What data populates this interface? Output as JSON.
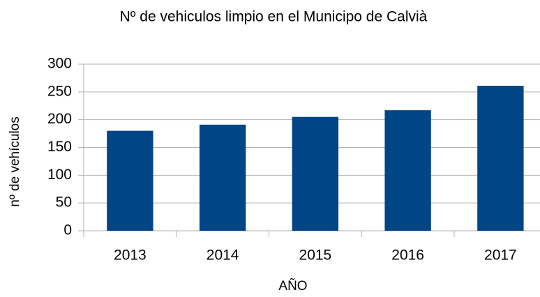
{
  "chart_data": {
    "type": "bar",
    "title": "Nº de vehiculos limpio en el Municipo de Calvià",
    "x_label": "AÑO",
    "y_label": "nº de vehículos",
    "categories": [
      "2013",
      "2014",
      "2015",
      "2016",
      "2017"
    ],
    "values": [
      180,
      191,
      205,
      217,
      261
    ],
    "color": "#004586",
    "ylim": [
      0,
      300
    ],
    "yticks": [
      0,
      50,
      100,
      150,
      200,
      250,
      300
    ],
    "grid": true
  }
}
